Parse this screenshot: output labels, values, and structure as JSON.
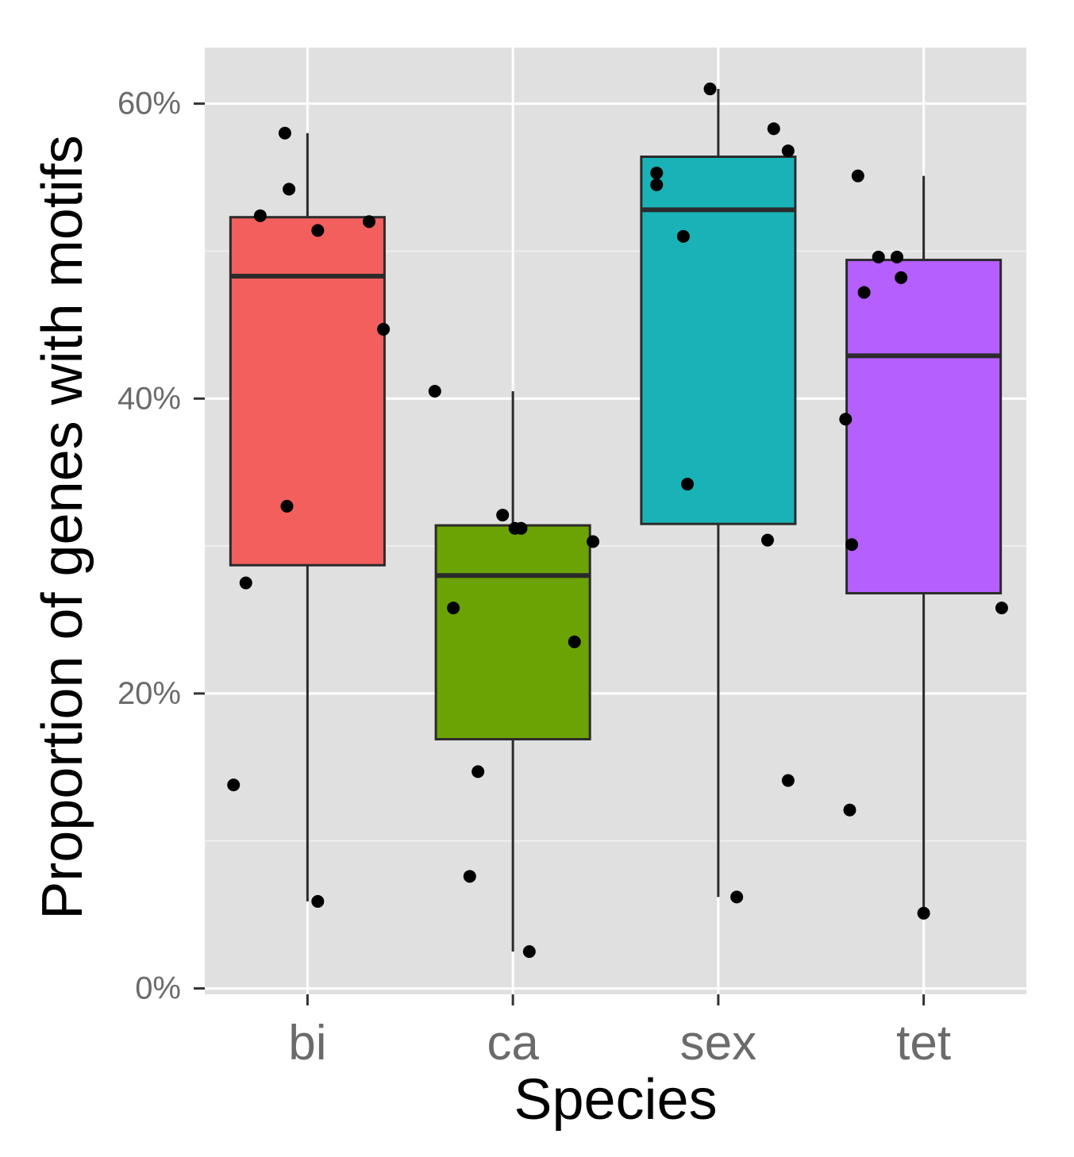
{
  "chart_data": {
    "type": "box",
    "xlabel": "Species",
    "ylabel": "Proportion of genes with motifs",
    "categories": [
      "bi",
      "ca",
      "sex",
      "tet"
    ],
    "y_ticks": [
      0,
      20,
      40,
      60
    ],
    "y_tick_labels": [
      "0%",
      "20%",
      "40%",
      "60%"
    ],
    "ylim": [
      -0.4,
      63.8
    ],
    "grid": true,
    "legend": "none",
    "colors": {
      "bi": "#F25F5C",
      "ca": "#6BA304",
      "sex": "#19B3B7",
      "tet": "#B65FFF",
      "panel": "#E0E0E0",
      "grid": "#FFFFFF",
      "points": "#000000",
      "box_line": "#2B2B2B"
    },
    "boxes": [
      {
        "category": "bi",
        "whisker_low": 5.9,
        "q1": 28.7,
        "median": 48.3,
        "q3": 52.3,
        "whisker_high": 58.0
      },
      {
        "category": "ca",
        "whisker_low": 2.5,
        "q1": 16.9,
        "median": 28.0,
        "q3": 31.4,
        "whisker_high": 40.5
      },
      {
        "category": "sex",
        "whisker_low": 6.2,
        "q1": 31.5,
        "median": 52.8,
        "q3": 56.4,
        "whisker_high": 61.0
      },
      {
        "category": "tet",
        "whisker_low": 5.1,
        "q1": 26.8,
        "median": 42.9,
        "q3": 49.4,
        "whisker_high": 55.1
      }
    ],
    "points": [
      {
        "category": "bi",
        "jitter": -0.36,
        "y": 13.8
      },
      {
        "category": "bi",
        "jitter": -0.3,
        "y": 27.5
      },
      {
        "category": "bi",
        "jitter": -0.23,
        "y": 52.4
      },
      {
        "category": "bi",
        "jitter": -0.11,
        "y": 58.0
      },
      {
        "category": "bi",
        "jitter": -0.1,
        "y": 32.7
      },
      {
        "category": "bi",
        "jitter": -0.09,
        "y": 54.2
      },
      {
        "category": "bi",
        "jitter": 0.05,
        "y": 51.4
      },
      {
        "category": "bi",
        "jitter": 0.05,
        "y": 5.9
      },
      {
        "category": "bi",
        "jitter": 0.3,
        "y": 52.0
      },
      {
        "category": "bi",
        "jitter": 0.37,
        "y": 44.7
      },
      {
        "category": "ca",
        "jitter": -0.38,
        "y": 40.5
      },
      {
        "category": "ca",
        "jitter": -0.29,
        "y": 25.8
      },
      {
        "category": "ca",
        "jitter": -0.21,
        "y": 7.6
      },
      {
        "category": "ca",
        "jitter": -0.17,
        "y": 14.7
      },
      {
        "category": "ca",
        "jitter": -0.05,
        "y": 32.1
      },
      {
        "category": "ca",
        "jitter": 0.01,
        "y": 31.2
      },
      {
        "category": "ca",
        "jitter": 0.04,
        "y": 31.2
      },
      {
        "category": "ca",
        "jitter": 0.08,
        "y": 2.5
      },
      {
        "category": "ca",
        "jitter": 0.3,
        "y": 23.5
      },
      {
        "category": "ca",
        "jitter": 0.39,
        "y": 30.3
      },
      {
        "category": "sex",
        "jitter": -0.3,
        "y": 55.3
      },
      {
        "category": "sex",
        "jitter": -0.3,
        "y": 54.5
      },
      {
        "category": "sex",
        "jitter": -0.17,
        "y": 51.0
      },
      {
        "category": "sex",
        "jitter": -0.15,
        "y": 34.2
      },
      {
        "category": "sex",
        "jitter": -0.04,
        "y": 61.0
      },
      {
        "category": "sex",
        "jitter": 0.09,
        "y": 6.2
      },
      {
        "category": "sex",
        "jitter": 0.24,
        "y": 30.4
      },
      {
        "category": "sex",
        "jitter": 0.27,
        "y": 58.3
      },
      {
        "category": "sex",
        "jitter": 0.34,
        "y": 56.8
      },
      {
        "category": "sex",
        "jitter": 0.34,
        "y": 14.1
      },
      {
        "category": "tet",
        "jitter": -0.38,
        "y": 38.6
      },
      {
        "category": "tet",
        "jitter": -0.36,
        "y": 12.1
      },
      {
        "category": "tet",
        "jitter": -0.35,
        "y": 30.1
      },
      {
        "category": "tet",
        "jitter": -0.32,
        "y": 55.1
      },
      {
        "category": "tet",
        "jitter": -0.29,
        "y": 47.2
      },
      {
        "category": "tet",
        "jitter": -0.22,
        "y": 49.6
      },
      {
        "category": "tet",
        "jitter": -0.13,
        "y": 49.6
      },
      {
        "category": "tet",
        "jitter": -0.11,
        "y": 48.2
      },
      {
        "category": "tet",
        "jitter": 0.0,
        "y": 5.1
      },
      {
        "category": "tet",
        "jitter": 0.38,
        "y": 25.8
      }
    ]
  }
}
